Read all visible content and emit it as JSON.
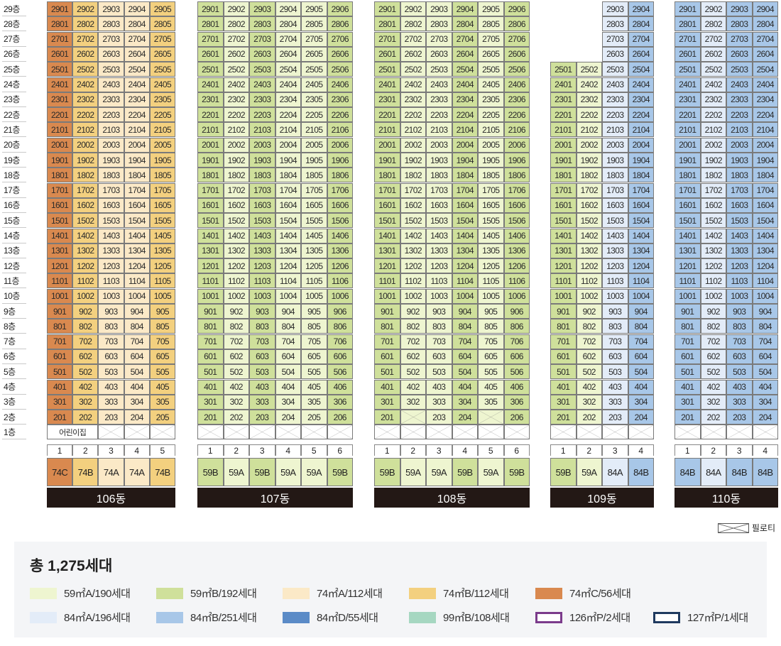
{
  "floors": [
    "29층",
    "28층",
    "27층",
    "26층",
    "25층",
    "24층",
    "23층",
    "22층",
    "21층",
    "20층",
    "19층",
    "18층",
    "17층",
    "16층",
    "15층",
    "14층",
    "13층",
    "12층",
    "11층",
    "10층",
    "9층",
    "8층",
    "7층",
    "6층",
    "5층",
    "4층",
    "3층",
    "2층",
    "1층"
  ],
  "colors": {
    "59A": "#eef5d0",
    "59B": "#cfe09b",
    "74A": "#fbe9c7",
    "74B": "#f3d07f",
    "74C": "#d9894f",
    "84A": "#e3ecf8",
    "84B": "#a8c7e8",
    "84D": "#5b8bc7",
    "99B": "#a6d7c1",
    "126P": "#7b3b8b",
    "127P": "#1f3a5f"
  },
  "buildings": [
    {
      "name": "106동",
      "lines": [
        {
          "num": "1",
          "type": "74C",
          "top": 29,
          "ground": "daycare",
          "u2": true
        },
        {
          "num": "2",
          "type": "74B",
          "top": 29,
          "ground": "daycare",
          "u2": true
        },
        {
          "num": "3",
          "type": "74A",
          "top": 29,
          "ground": "pilotis",
          "u2": true
        },
        {
          "num": "4",
          "type": "74A",
          "top": 29,
          "ground": "pilotis",
          "u2": true
        },
        {
          "num": "5",
          "type": "74B",
          "top": 29,
          "ground": "pilotis",
          "u2": true
        }
      ],
      "daycare_label": "어린이집"
    },
    {
      "name": "107동",
      "lines": [
        {
          "num": "1",
          "type": "59B",
          "top": 29,
          "ground": "pilotis",
          "u2": true
        },
        {
          "num": "2",
          "type": "59A",
          "top": 29,
          "ground": "pilotis",
          "u2": true
        },
        {
          "num": "3",
          "type": "59B",
          "top": 29,
          "ground": "pilotis",
          "u2": true
        },
        {
          "num": "4",
          "type": "59A",
          "top": 29,
          "ground": "pilotis",
          "u2": true
        },
        {
          "num": "5",
          "type": "59A",
          "top": 29,
          "ground": "pilotis",
          "u2": true
        },
        {
          "num": "6",
          "type": "59B",
          "top": 29,
          "ground": "pilotis",
          "u2": true
        }
      ]
    },
    {
      "name": "108동",
      "lines": [
        {
          "num": "1",
          "type": "59B",
          "top": 29,
          "ground": "pilotis",
          "u2": true
        },
        {
          "num": "2",
          "type": "59A",
          "top": 29,
          "ground": "pilotis",
          "u2": false
        },
        {
          "num": "3",
          "type": "59A",
          "top": 29,
          "ground": "pilotis",
          "u2": true
        },
        {
          "num": "4",
          "type": "59B",
          "top": 29,
          "ground": "pilotis",
          "u2": true
        },
        {
          "num": "5",
          "type": "59A",
          "top": 29,
          "ground": "pilotis",
          "u2": false
        },
        {
          "num": "6",
          "type": "59B",
          "top": 29,
          "ground": "pilotis",
          "u2": true
        }
      ]
    },
    {
      "name": "109동",
      "lines": [
        {
          "num": "1",
          "type": "59B",
          "top": 25,
          "ground": "pilotis",
          "u2": true
        },
        {
          "num": "2",
          "type": "59A",
          "top": 25,
          "ground": "pilotis",
          "u2": true
        },
        {
          "num": "3",
          "type": "84A",
          "top": 29,
          "ground": "pilotis",
          "u2": true
        },
        {
          "num": "4",
          "type": "84B",
          "top": 29,
          "ground": "pilotis",
          "u2": true
        }
      ]
    },
    {
      "name": "110동",
      "lines": [
        {
          "num": "1",
          "type": "84B",
          "top": 29,
          "ground": "pilotis",
          "u2": true
        },
        {
          "num": "2",
          "type": "84A",
          "top": 29,
          "ground": "pilotis",
          "u2": true
        },
        {
          "num": "3",
          "type": "84B",
          "top": 29,
          "ground": "pilotis",
          "u2": true
        },
        {
          "num": "4",
          "type": "84B",
          "top": 29,
          "ground": "pilotis",
          "u2": true
        }
      ]
    }
  ],
  "pilotis_legend": "필로티",
  "legend": {
    "title": "총 1,275세대",
    "items": [
      {
        "type": "59A",
        "label": "59㎡A/190세대",
        "style": "fill"
      },
      {
        "type": "59B",
        "label": "59㎡B/192세대",
        "style": "fill"
      },
      {
        "type": "74A",
        "label": "74㎡A/112세대",
        "style": "fill"
      },
      {
        "type": "74B",
        "label": "74㎡B/112세대",
        "style": "fill"
      },
      {
        "type": "74C",
        "label": "74㎡C/56세대",
        "style": "fill"
      },
      {
        "type": "84A",
        "label": "84㎡A/196세대",
        "style": "fill"
      },
      {
        "type": "84B",
        "label": "84㎡B/251세대",
        "style": "fill"
      },
      {
        "type": "84D",
        "label": "84㎡D/55세대",
        "style": "fill"
      },
      {
        "type": "99B",
        "label": "99㎡B/108세대",
        "style": "fill"
      },
      {
        "type": "126P",
        "label": "126㎡P/2세대",
        "style": "outline"
      },
      {
        "type": "127P",
        "label": "127㎡P/1세대",
        "style": "outline"
      }
    ]
  }
}
